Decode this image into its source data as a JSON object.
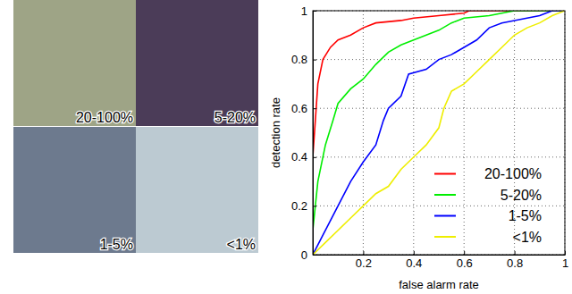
{
  "chart_data": {
    "type": "line",
    "x_label": "false alarm rate",
    "y_label": "detection rate",
    "xlim": [
      0,
      1
    ],
    "ylim": [
      0,
      1
    ],
    "xticks": [
      0.2,
      0.4,
      0.6,
      0.8,
      1
    ],
    "yticks": [
      0,
      0.2,
      0.4,
      0.6,
      0.8,
      1
    ],
    "grid": true,
    "legend": "lower right",
    "series": [
      {
        "name": "20-100%",
        "color": "#ff0000",
        "x": [
          0,
          0,
          0.01,
          0.02,
          0.04,
          0.07,
          0.1,
          0.15,
          0.2,
          0.25,
          0.35,
          0.4,
          0.5,
          0.6,
          0.62,
          1
        ],
        "values": [
          0,
          0.4,
          0.55,
          0.7,
          0.8,
          0.85,
          0.88,
          0.9,
          0.93,
          0.95,
          0.96,
          0.97,
          0.98,
          0.99,
          1,
          1
        ]
      },
      {
        "name": "5-20%",
        "color": "#00ee00",
        "x": [
          0,
          0,
          0.02,
          0.05,
          0.08,
          0.1,
          0.15,
          0.2,
          0.25,
          0.3,
          0.35,
          0.4,
          0.45,
          0.5,
          0.55,
          0.6,
          0.7,
          0.8,
          1
        ],
        "values": [
          0,
          0.1,
          0.3,
          0.45,
          0.55,
          0.62,
          0.68,
          0.72,
          0.78,
          0.83,
          0.86,
          0.88,
          0.9,
          0.92,
          0.95,
          0.97,
          0.98,
          1,
          1
        ]
      },
      {
        "name": "1-5%",
        "color": "#0000ff",
        "x": [
          0,
          0.05,
          0.1,
          0.15,
          0.2,
          0.25,
          0.28,
          0.3,
          0.35,
          0.38,
          0.45,
          0.5,
          0.55,
          0.6,
          0.65,
          0.7,
          0.75,
          0.85,
          0.9,
          0.95,
          1
        ],
        "values": [
          0,
          0.1,
          0.2,
          0.3,
          0.38,
          0.45,
          0.55,
          0.6,
          0.65,
          0.74,
          0.76,
          0.8,
          0.82,
          0.85,
          0.88,
          0.93,
          0.95,
          0.97,
          0.98,
          1,
          1
        ]
      },
      {
        "name": "<1%",
        "color": "#eeee00",
        "x": [
          0,
          0.05,
          0.1,
          0.15,
          0.2,
          0.25,
          0.3,
          0.35,
          0.4,
          0.45,
          0.5,
          0.52,
          0.55,
          0.6,
          0.65,
          0.7,
          0.75,
          0.8,
          0.85,
          0.9,
          0.95,
          1
        ],
        "values": [
          0,
          0.05,
          0.1,
          0.15,
          0.2,
          0.25,
          0.28,
          0.35,
          0.4,
          0.45,
          0.52,
          0.6,
          0.67,
          0.7,
          0.75,
          0.8,
          0.85,
          0.9,
          0.93,
          0.95,
          0.98,
          1
        ]
      }
    ]
  }
}
